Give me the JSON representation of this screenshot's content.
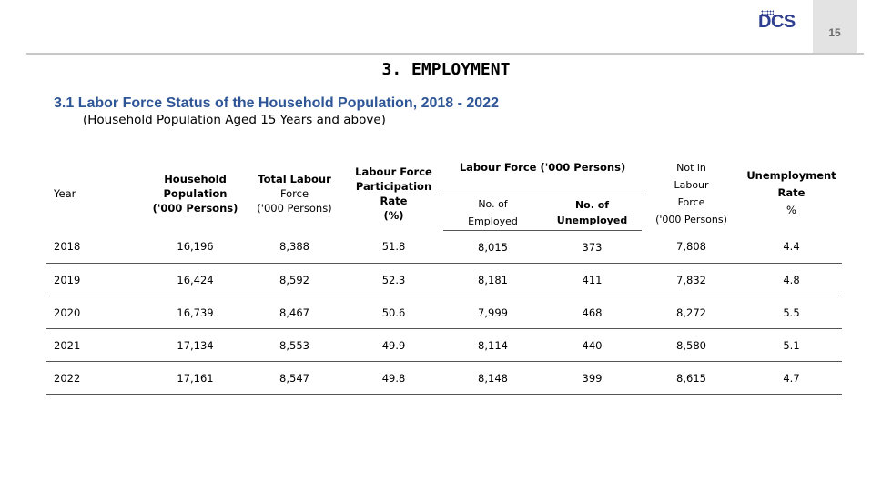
{
  "header": {
    "page_number": "15",
    "logo_text": "DCS",
    "logo_colors": [
      "#2e3f8f",
      "#e8a21a"
    ]
  },
  "page_title": "3. EMPLOYMENT",
  "section_title": "3.1 Labor Force Status of the Household Population, 2018 - 2022",
  "section_note": "(Household Population Aged 15 Years and above)",
  "table": {
    "col_year": "Year",
    "col_household_population": "Household Population ('000 Persons)",
    "col_total_labour_force": "Total Labour Force ('000 Persons)",
    "col_participation_rate": "Labour Force Participation Rate (%)",
    "group_labour_force": "Labour Force ('000 Persons)",
    "col_employed": "No. of Employed",
    "col_unemployed": "No. of Unemployed",
    "col_not_in_labour_force": "Not in Labour Force ('000 Persons)",
    "col_unemployment_rate": "Unemployment Rate %",
    "rows": [
      [
        "2018",
        "16,196",
        "8,388",
        "51.8",
        "8,015",
        "373",
        "7,808",
        "4.4"
      ],
      [
        "2019",
        "16,424",
        "8,592",
        "52.3",
        "8,181",
        "411",
        "7,832",
        "4.8"
      ],
      [
        "2020",
        "16,739",
        "8,467",
        "50.6",
        "7,999",
        "468",
        "8,272",
        "5.5"
      ],
      [
        "2021",
        "17,134",
        "8,553",
        "49.9",
        "8,114",
        "440",
        "8,580",
        "5.1"
      ],
      [
        "2022",
        "17,161",
        "8,547",
        "49.8",
        "8,148",
        "399",
        "8,615",
        "4.7"
      ]
    ]
  }
}
